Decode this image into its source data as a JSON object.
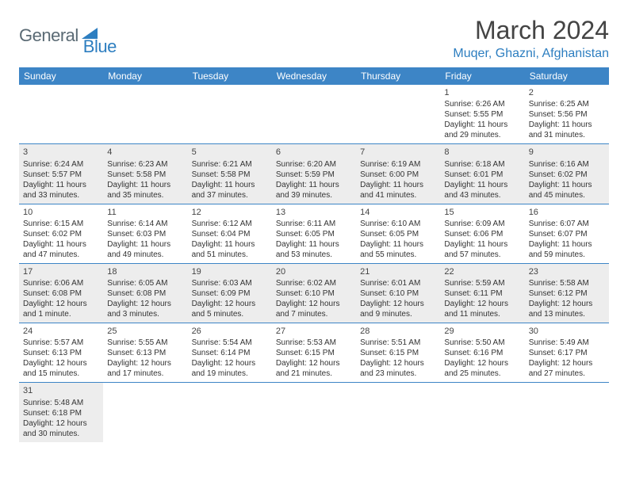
{
  "logo": {
    "text1": "General",
    "text2": "Blue"
  },
  "title": "March 2024",
  "location": "Muqer, Ghazni, Afghanistan",
  "colors": {
    "header_bg": "#3d85c6",
    "header_text": "#ffffff",
    "border": "#3d85c6",
    "shaded": "#ededed",
    "logo_gray": "#5a6a74",
    "logo_blue": "#2d7ec0"
  },
  "weekdays": [
    "Sunday",
    "Monday",
    "Tuesday",
    "Wednesday",
    "Thursday",
    "Friday",
    "Saturday"
  ],
  "weeks": [
    [
      null,
      null,
      null,
      null,
      null,
      {
        "n": "1",
        "sr": "Sunrise: 6:26 AM",
        "ss": "Sunset: 5:55 PM",
        "d1": "Daylight: 11 hours",
        "d2": "and 29 minutes."
      },
      {
        "n": "2",
        "sr": "Sunrise: 6:25 AM",
        "ss": "Sunset: 5:56 PM",
        "d1": "Daylight: 11 hours",
        "d2": "and 31 minutes."
      }
    ],
    [
      {
        "n": "3",
        "sr": "Sunrise: 6:24 AM",
        "ss": "Sunset: 5:57 PM",
        "d1": "Daylight: 11 hours",
        "d2": "and 33 minutes."
      },
      {
        "n": "4",
        "sr": "Sunrise: 6:23 AM",
        "ss": "Sunset: 5:58 PM",
        "d1": "Daylight: 11 hours",
        "d2": "and 35 minutes."
      },
      {
        "n": "5",
        "sr": "Sunrise: 6:21 AM",
        "ss": "Sunset: 5:58 PM",
        "d1": "Daylight: 11 hours",
        "d2": "and 37 minutes."
      },
      {
        "n": "6",
        "sr": "Sunrise: 6:20 AM",
        "ss": "Sunset: 5:59 PM",
        "d1": "Daylight: 11 hours",
        "d2": "and 39 minutes."
      },
      {
        "n": "7",
        "sr": "Sunrise: 6:19 AM",
        "ss": "Sunset: 6:00 PM",
        "d1": "Daylight: 11 hours",
        "d2": "and 41 minutes."
      },
      {
        "n": "8",
        "sr": "Sunrise: 6:18 AM",
        "ss": "Sunset: 6:01 PM",
        "d1": "Daylight: 11 hours",
        "d2": "and 43 minutes."
      },
      {
        "n": "9",
        "sr": "Sunrise: 6:16 AM",
        "ss": "Sunset: 6:02 PM",
        "d1": "Daylight: 11 hours",
        "d2": "and 45 minutes."
      }
    ],
    [
      {
        "n": "10",
        "sr": "Sunrise: 6:15 AM",
        "ss": "Sunset: 6:02 PM",
        "d1": "Daylight: 11 hours",
        "d2": "and 47 minutes."
      },
      {
        "n": "11",
        "sr": "Sunrise: 6:14 AM",
        "ss": "Sunset: 6:03 PM",
        "d1": "Daylight: 11 hours",
        "d2": "and 49 minutes."
      },
      {
        "n": "12",
        "sr": "Sunrise: 6:12 AM",
        "ss": "Sunset: 6:04 PM",
        "d1": "Daylight: 11 hours",
        "d2": "and 51 minutes."
      },
      {
        "n": "13",
        "sr": "Sunrise: 6:11 AM",
        "ss": "Sunset: 6:05 PM",
        "d1": "Daylight: 11 hours",
        "d2": "and 53 minutes."
      },
      {
        "n": "14",
        "sr": "Sunrise: 6:10 AM",
        "ss": "Sunset: 6:05 PM",
        "d1": "Daylight: 11 hours",
        "d2": "and 55 minutes."
      },
      {
        "n": "15",
        "sr": "Sunrise: 6:09 AM",
        "ss": "Sunset: 6:06 PM",
        "d1": "Daylight: 11 hours",
        "d2": "and 57 minutes."
      },
      {
        "n": "16",
        "sr": "Sunrise: 6:07 AM",
        "ss": "Sunset: 6:07 PM",
        "d1": "Daylight: 11 hours",
        "d2": "and 59 minutes."
      }
    ],
    [
      {
        "n": "17",
        "sr": "Sunrise: 6:06 AM",
        "ss": "Sunset: 6:08 PM",
        "d1": "Daylight: 12 hours",
        "d2": "and 1 minute."
      },
      {
        "n": "18",
        "sr": "Sunrise: 6:05 AM",
        "ss": "Sunset: 6:08 PM",
        "d1": "Daylight: 12 hours",
        "d2": "and 3 minutes."
      },
      {
        "n": "19",
        "sr": "Sunrise: 6:03 AM",
        "ss": "Sunset: 6:09 PM",
        "d1": "Daylight: 12 hours",
        "d2": "and 5 minutes."
      },
      {
        "n": "20",
        "sr": "Sunrise: 6:02 AM",
        "ss": "Sunset: 6:10 PM",
        "d1": "Daylight: 12 hours",
        "d2": "and 7 minutes."
      },
      {
        "n": "21",
        "sr": "Sunrise: 6:01 AM",
        "ss": "Sunset: 6:10 PM",
        "d1": "Daylight: 12 hours",
        "d2": "and 9 minutes."
      },
      {
        "n": "22",
        "sr": "Sunrise: 5:59 AM",
        "ss": "Sunset: 6:11 PM",
        "d1": "Daylight: 12 hours",
        "d2": "and 11 minutes."
      },
      {
        "n": "23",
        "sr": "Sunrise: 5:58 AM",
        "ss": "Sunset: 6:12 PM",
        "d1": "Daylight: 12 hours",
        "d2": "and 13 minutes."
      }
    ],
    [
      {
        "n": "24",
        "sr": "Sunrise: 5:57 AM",
        "ss": "Sunset: 6:13 PM",
        "d1": "Daylight: 12 hours",
        "d2": "and 15 minutes."
      },
      {
        "n": "25",
        "sr": "Sunrise: 5:55 AM",
        "ss": "Sunset: 6:13 PM",
        "d1": "Daylight: 12 hours",
        "d2": "and 17 minutes."
      },
      {
        "n": "26",
        "sr": "Sunrise: 5:54 AM",
        "ss": "Sunset: 6:14 PM",
        "d1": "Daylight: 12 hours",
        "d2": "and 19 minutes."
      },
      {
        "n": "27",
        "sr": "Sunrise: 5:53 AM",
        "ss": "Sunset: 6:15 PM",
        "d1": "Daylight: 12 hours",
        "d2": "and 21 minutes."
      },
      {
        "n": "28",
        "sr": "Sunrise: 5:51 AM",
        "ss": "Sunset: 6:15 PM",
        "d1": "Daylight: 12 hours",
        "d2": "and 23 minutes."
      },
      {
        "n": "29",
        "sr": "Sunrise: 5:50 AM",
        "ss": "Sunset: 6:16 PM",
        "d1": "Daylight: 12 hours",
        "d2": "and 25 minutes."
      },
      {
        "n": "30",
        "sr": "Sunrise: 5:49 AM",
        "ss": "Sunset: 6:17 PM",
        "d1": "Daylight: 12 hours",
        "d2": "and 27 minutes."
      }
    ],
    [
      {
        "n": "31",
        "sr": "Sunrise: 5:48 AM",
        "ss": "Sunset: 6:18 PM",
        "d1": "Daylight: 12 hours",
        "d2": "and 30 minutes."
      },
      null,
      null,
      null,
      null,
      null,
      null
    ]
  ]
}
